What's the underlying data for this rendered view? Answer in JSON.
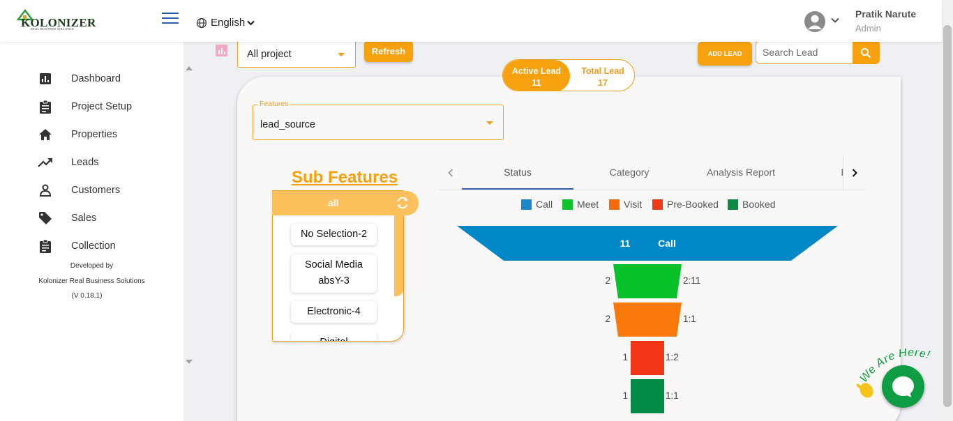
{
  "header": {
    "logo_text": "KOLONIZER",
    "logo_subtext": "REAL BUSINESS SOLUTION",
    "language": "English",
    "user_name": "Pratik Narute",
    "user_role": "Admin"
  },
  "sidebar": {
    "items": [
      {
        "label": "Dashboard",
        "icon": "bar-chart-icon"
      },
      {
        "label": "Project Setup",
        "icon": "clipboard-icon"
      },
      {
        "label": "Properties",
        "icon": "home-icon"
      },
      {
        "label": "Leads",
        "icon": "trending-up-icon"
      },
      {
        "label": "Customers",
        "icon": "person-icon"
      },
      {
        "label": "Sales",
        "icon": "tag-icon"
      },
      {
        "label": "Collection",
        "icon": "clipboard-icon"
      }
    ],
    "developed_by": "Developed by",
    "company": "Kolonizer Real Business Solutions",
    "version": "(V 0.18.1)"
  },
  "toolbar": {
    "project_select": "All project",
    "refresh_label": "Refresh",
    "add_lead_label": "ADD LEAD",
    "search_placeholder": "Search Lead"
  },
  "lead_toggle": {
    "active": {
      "label": "Active Lead",
      "count": "11"
    },
    "total": {
      "label": "Total Lead",
      "count": "17"
    }
  },
  "features": {
    "legend": "Features",
    "value": "lead_source"
  },
  "sub_features": {
    "title": "Sub Features",
    "header": "all",
    "chips": [
      "No Selection-2",
      "Social Media absY-3",
      "Electronic-4",
      "Digital"
    ]
  },
  "tabs": [
    "Status",
    "Category",
    "Analysis Report",
    "Effort"
  ],
  "legend": [
    {
      "label": "Call",
      "color": "#1a88c9"
    },
    {
      "label": "Meet",
      "color": "#0ec12e"
    },
    {
      "label": "Visit",
      "color": "#f46a0a"
    },
    {
      "label": "Pre-Booked",
      "color": "#f03a17"
    },
    {
      "label": "Booked",
      "color": "#0b8a45"
    }
  ],
  "chart_data": {
    "type": "funnel",
    "stages": [
      {
        "name": "Call",
        "value": 11,
        "ratio": "",
        "color": "#0087c8"
      },
      {
        "name": "Meet",
        "value": 2,
        "ratio": "2:11",
        "color": "#07c12b"
      },
      {
        "name": "Visit",
        "value": 2,
        "ratio": "1:1",
        "color": "#f97a0b"
      },
      {
        "name": "Pre-Booked",
        "value": 1,
        "ratio": "1:2",
        "color": "#f23516"
      },
      {
        "name": "Booked",
        "value": 1,
        "ratio": "1:1",
        "color": "#008a45"
      }
    ]
  },
  "chat": {
    "badge_text": "We Are Here!"
  }
}
